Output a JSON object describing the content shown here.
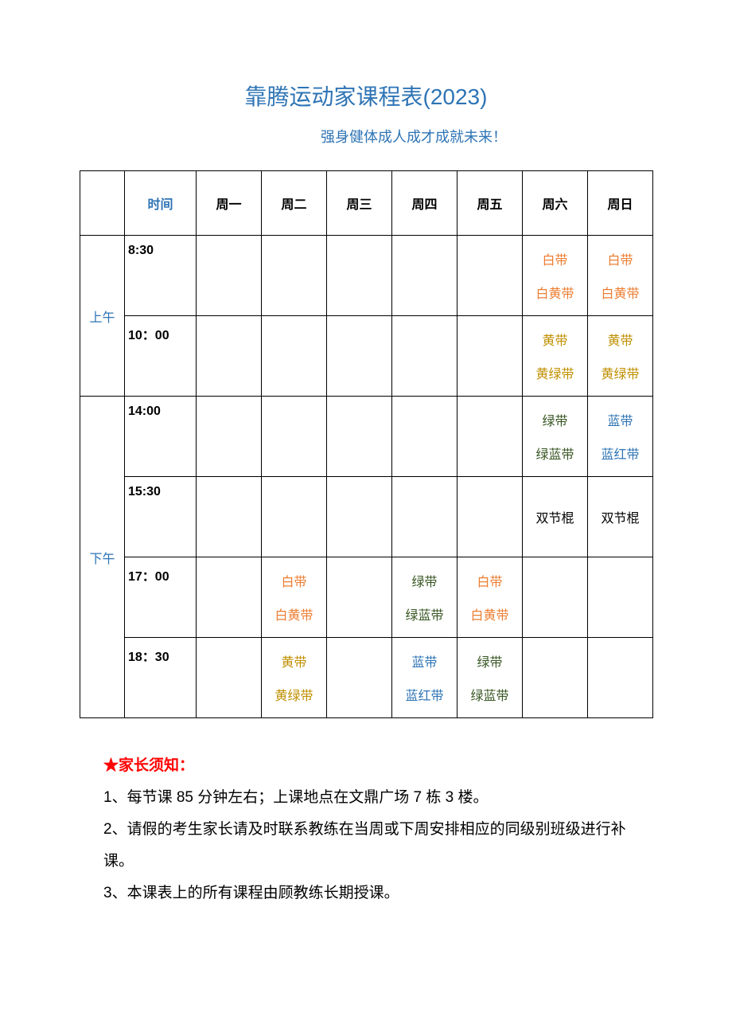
{
  "colors": {
    "title": "#2e74b5",
    "subtitle": "#2e74b5",
    "period": "#2e74b5",
    "time_header": "#2e74b5",
    "day_header": "#000000",
    "text_default": "#000000",
    "belt_white": "#ed7d31",
    "belt_whiteyellow": "#ed7d31",
    "belt_yellow": "#bf8f00",
    "belt_yellowgreen": "#bf8f00",
    "belt_green": "#385723",
    "belt_greenblue": "#385723",
    "belt_blue": "#2e74b5",
    "belt_bluered": "#2e74b5",
    "belt_nunchaku": "#000000",
    "notice_star": "#ff0000",
    "notice_heading": "#ff0000"
  },
  "title": "靠腾运动家课程表(2023)",
  "subtitle": "强身健体成人成才成就未来！",
  "headers": {
    "time": "时间",
    "days": [
      "周一",
      "周二",
      "周三",
      "周四",
      "周五",
      "周六",
      "周日"
    ]
  },
  "periods": {
    "am": "上午",
    "pm": "下午"
  },
  "rows": [
    {
      "period": "am",
      "time": "8:30",
      "cells": [
        [],
        [],
        [],
        [],
        [],
        [
          {
            "t": "白带",
            "c": "belt_white"
          },
          {
            "t": "白黄带",
            "c": "belt_whiteyellow"
          }
        ],
        [
          {
            "t": "白带",
            "c": "belt_white"
          },
          {
            "t": "白黄带",
            "c": "belt_whiteyellow"
          }
        ]
      ]
    },
    {
      "period": "am",
      "time": "10：00",
      "cells": [
        [],
        [],
        [],
        [],
        [],
        [
          {
            "t": "黄带",
            "c": "belt_yellow"
          },
          {
            "t": "黄绿带",
            "c": "belt_yellowgreen"
          }
        ],
        [
          {
            "t": "黄带",
            "c": "belt_yellow"
          },
          {
            "t": "黄绿带",
            "c": "belt_yellowgreen"
          }
        ]
      ]
    },
    {
      "period": "pm",
      "time": "14:00",
      "cells": [
        [],
        [],
        [],
        [],
        [],
        [
          {
            "t": "绿带",
            "c": "belt_green"
          },
          {
            "t": "绿蓝带",
            "c": "belt_greenblue"
          }
        ],
        [
          {
            "t": "蓝带",
            "c": "belt_blue"
          },
          {
            "t": "蓝红带",
            "c": "belt_bluered"
          }
        ]
      ]
    },
    {
      "period": "pm",
      "time": "15:30",
      "cells": [
        [],
        [],
        [],
        [],
        [],
        [
          {
            "t": "双节棍",
            "c": "belt_nunchaku"
          }
        ],
        [
          {
            "t": "双节棍",
            "c": "belt_nunchaku"
          }
        ]
      ]
    },
    {
      "period": "pm",
      "time": "17：00",
      "cells": [
        [],
        [
          {
            "t": "白带",
            "c": "belt_white"
          },
          {
            "t": "白黄带",
            "c": "belt_whiteyellow"
          }
        ],
        [],
        [
          {
            "t": "绿带",
            "c": "belt_green"
          },
          {
            "t": "绿蓝带",
            "c": "belt_greenblue"
          }
        ],
        [
          {
            "t": "白带",
            "c": "belt_white"
          },
          {
            "t": "白黄带",
            "c": "belt_whiteyellow"
          }
        ],
        [],
        []
      ]
    },
    {
      "period": "pm",
      "time": "18：30",
      "cells": [
        [],
        [
          {
            "t": "黄带",
            "c": "belt_yellow"
          },
          {
            "t": "黄绿带",
            "c": "belt_yellowgreen"
          }
        ],
        [],
        [
          {
            "t": "蓝带",
            "c": "belt_blue"
          },
          {
            "t": "蓝红带",
            "c": "belt_bluered"
          }
        ],
        [
          {
            "t": "绿带",
            "c": "belt_green"
          },
          {
            "t": "绿蓝带",
            "c": "belt_greenblue"
          }
        ],
        [],
        []
      ]
    }
  ],
  "notes": {
    "star": "★",
    "heading": "家长须知：",
    "items": [
      "1、每节课 85 分钟左右；上课地点在文鼎广场 7 栋 3 楼。",
      "2、请假的考生家长请及时联系教练在当周或下周安排相应的同级别班级进行补课。",
      "3、本课表上的所有课程由顾教练长期授课。"
    ]
  }
}
